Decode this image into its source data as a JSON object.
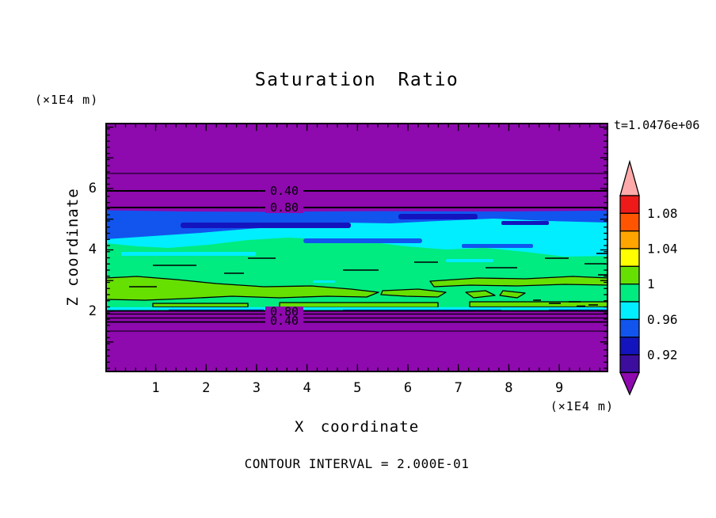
{
  "title": "Saturation Ratio",
  "annotations": {
    "time": "t=1.0476e+06",
    "footer": "CONTOUR INTERVAL = 2.000E-01"
  },
  "x_axis": {
    "label": "X coordinate",
    "unit": "(×1E4 m)",
    "ticks": [
      "1",
      "2",
      "3",
      "4",
      "5",
      "6",
      "7",
      "8",
      "9"
    ]
  },
  "y_axis": {
    "label": "Z coordinate",
    "unit": "(×1E4 m)",
    "ticks": [
      "6",
      "4",
      "2"
    ]
  },
  "contour_labels": {
    "top_040": "0.40",
    "top_080": "0.80",
    "bottom_080": "0.80",
    "bottom_040": "0.40"
  },
  "colorbar": {
    "labels": [
      "1.08",
      "1.04",
      "1",
      "0.96",
      "0.92"
    ],
    "colors": [
      "#FFAAAA",
      "#EE1A1A",
      "#FF5500",
      "#FFA500",
      "#FFFF00",
      "#66E000",
      "#00EB80",
      "#00EEFF",
      "#1155EE",
      "#1414BE",
      "#3D0D9E",
      "#8E09AE"
    ]
  },
  "colors": {
    "purple": "#8E09AE",
    "blue": "#1155EE",
    "navy": "#1414BE",
    "cyan": "#00EEFF",
    "springgreen": "#00EB80",
    "chartreuse": "#66E000",
    "ink": "#000000"
  },
  "chart_data": {
    "type": "filled_contour",
    "title": "Saturation Ratio",
    "time_annotation": "t=1.0476e+06",
    "xlabel": "X coordinate",
    "x_unit": "(×1E4 m)",
    "ylabel": "Z coordinate",
    "y_unit": "(×1E4 m)",
    "x_ticks": [
      1,
      2,
      3,
      4,
      5,
      6,
      7,
      8,
      9
    ],
    "y_ticks": [
      2,
      4,
      6
    ],
    "x_range": [
      0,
      10
    ],
    "y_range": [
      0,
      8.1
    ],
    "grid": false,
    "contour_interval": "2.000E-01",
    "colorbar": {
      "position": "right",
      "boundaries": [
        0.9,
        0.92,
        0.94,
        0.96,
        0.98,
        1.0,
        1.02,
        1.04,
        1.06,
        1.08,
        1.1
      ],
      "labeled_values": [
        1.08,
        1.04,
        1,
        0.96,
        0.92
      ],
      "segment_colors_top_to_bottom": [
        "#FFAAAA",
        "#EE1A1A",
        "#FF5500",
        "#FFA500",
        "#FFFF00",
        "#66E000",
        "#00EB80",
        "#00EEFF",
        "#1155EE",
        "#1414BE",
        "#3D0D9E",
        "#8E09AE"
      ]
    },
    "horizontal_bands_top_to_bottom": [
      {
        "approx_z": "5.7 to 8.1",
        "value": "below 0.90 scale (low saturation)",
        "color": "#8E09AE",
        "note": "unlabeled contour near z=6.5, labeled 0.40 at z=5.95 and 0.80 at z=5.4"
      },
      {
        "approx_z": "5.3 to 5.7",
        "value": "0.94-0.96",
        "color": "#1155EE",
        "note": "darker 0.92-0.94 streaks inside"
      },
      {
        "approx_z": "4.9 to 5.3",
        "value": "0.96-0.98",
        "color": "#00EEFF"
      },
      {
        "approx_z": "2.1 to 4.9",
        "value": "0.98-1.00",
        "color": "#00EB80",
        "note": "1.00-1.02 chartreuse streaks near z=2.3-2.9 outlined black"
      },
      {
        "approx_z": "2.05",
        "value": "0.96-0.98 thin strip",
        "color": "#00EEFF"
      },
      {
        "approx_z": "0 to 2.0",
        "value": "below 0.90 scale (low saturation)",
        "color": "#8E09AE",
        "note": "labeled 0.80 and 0.40 contours overlap near z=1.9, unlabeled contour near z=1.4"
      }
    ],
    "inline_contour_labels": [
      {
        "value": 0.4,
        "x": 3.3,
        "z": 5.95
      },
      {
        "value": 0.8,
        "x": 3.3,
        "z": 5.4
      },
      {
        "value": 0.8,
        "x": 3.3,
        "z": 1.95
      },
      {
        "value": 0.4,
        "x": 3.3,
        "z": 1.75
      }
    ]
  }
}
